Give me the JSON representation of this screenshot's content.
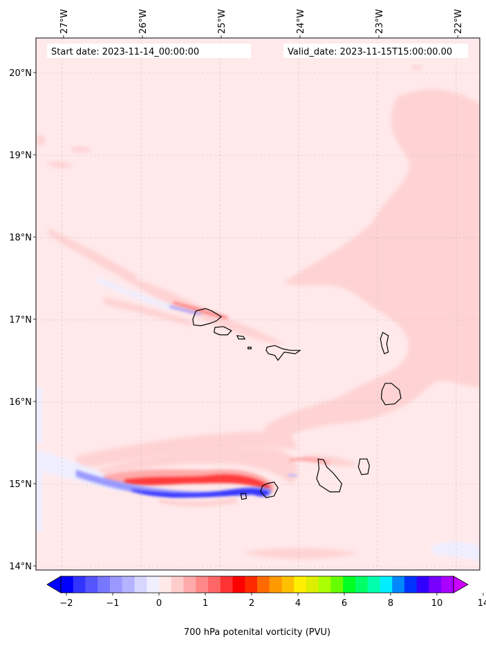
{
  "chart_data": {
    "type": "heatmap",
    "title_left": "Start date: 2023-11-14_00:00:00",
    "title_right": "Valid_date: 2023-11-15T15:00:00.00",
    "x_ticks": [
      {
        "value": -27,
        "label": "27°W"
      },
      {
        "value": -26,
        "label": "26°W"
      },
      {
        "value": -25,
        "label": "25°W"
      },
      {
        "value": -24,
        "label": "24°W"
      },
      {
        "value": -23,
        "label": "23°W"
      },
      {
        "value": -22,
        "label": "22°W"
      }
    ],
    "y_ticks": [
      {
        "value": 20,
        "label": "20°N"
      },
      {
        "value": 19,
        "label": "19°N"
      },
      {
        "value": 18,
        "label": "18°N"
      },
      {
        "value": 17,
        "label": "17°N"
      },
      {
        "value": 16,
        "label": "16°N"
      },
      {
        "value": 15,
        "label": "15°N"
      },
      {
        "value": 14,
        "label": "14°N"
      }
    ],
    "xlim": [
      -27.35,
      -21.72
    ],
    "ylim": [
      13.95,
      20.42
    ],
    "grid": true,
    "colorbar": {
      "label": "700 hPa potenital vorticity (PVU)",
      "extend": "both",
      "ticks": [
        "−2",
        "−1",
        "0",
        "1",
        "2",
        "4",
        "6",
        "8",
        "10",
        "14"
      ],
      "colors": [
        "#0000ff",
        "#3333ff",
        "#5555ff",
        "#7777ff",
        "#9999ff",
        "#b3b3ff",
        "#d6d6ff",
        "#efefff",
        "#ffe8e8",
        "#ffcccc",
        "#ffaaaa",
        "#ff8888",
        "#ff6666",
        "#ff3333",
        "#ff0000",
        "#ff2a00",
        "#ff6a00",
        "#ff9900",
        "#ffc000",
        "#ffee00",
        "#ddee00",
        "#aaff00",
        "#66ff00",
        "#00ff22",
        "#00ff66",
        "#00ffaa",
        "#00eeff",
        "#0088ff",
        "#0033ff",
        "#3300ff",
        "#7700ff",
        "#aa00ff"
      ],
      "under_color": "#0000ff",
      "over_color": "#cc00ff"
    },
    "field_colors": {
      "background": "#ffe9ea",
      "weak_positive": "#ffd3d4",
      "weak_negative": "#eeeeff",
      "positive": "#ff4d4d",
      "strong_positive": "#ff1a1a",
      "negative": "#6f6fff",
      "strong_negative": "#2020ff"
    },
    "islands": [
      {
        "name": "santo-antao",
        "coords": [
          [
            -25.32,
            17.1
          ],
          [
            -25.2,
            17.13
          ],
          [
            -25.12,
            17.1
          ],
          [
            -25.05,
            17.06
          ],
          [
            -25.0,
            17.03
          ],
          [
            -25.06,
            16.98
          ],
          [
            -25.14,
            16.95
          ],
          [
            -25.26,
            16.92
          ],
          [
            -25.35,
            16.93
          ],
          [
            -25.36,
            17.0
          ]
        ]
      },
      {
        "name": "sao-vicente",
        "coords": [
          [
            -25.08,
            16.9
          ],
          [
            -24.97,
            16.91
          ],
          [
            -24.87,
            16.86
          ],
          [
            -24.92,
            16.81
          ],
          [
            -25.02,
            16.81
          ],
          [
            -25.09,
            16.84
          ]
        ]
      },
      {
        "name": "santa-luzia",
        "coords": [
          [
            -24.8,
            16.8
          ],
          [
            -24.72,
            16.79
          ],
          [
            -24.7,
            16.76
          ],
          [
            -24.78,
            16.76
          ]
        ]
      },
      {
        "name": "branco",
        "coords": [
          [
            -24.66,
            16.66
          ],
          [
            -24.62,
            16.66
          ],
          [
            -24.62,
            16.64
          ],
          [
            -24.66,
            16.64
          ]
        ]
      },
      {
        "name": "sao-nicolau",
        "coords": [
          [
            -24.42,
            16.66
          ],
          [
            -24.32,
            16.68
          ],
          [
            -24.22,
            16.64
          ],
          [
            -24.12,
            16.62
          ],
          [
            -24.0,
            16.62
          ],
          [
            -24.06,
            16.58
          ],
          [
            -24.2,
            16.6
          ],
          [
            -24.28,
            16.5
          ],
          [
            -24.32,
            16.56
          ],
          [
            -24.4,
            16.58
          ],
          [
            -24.43,
            16.62
          ]
        ]
      },
      {
        "name": "sal",
        "coords": [
          [
            -22.95,
            16.84
          ],
          [
            -22.88,
            16.8
          ],
          [
            -22.9,
            16.7
          ],
          [
            -22.88,
            16.6
          ],
          [
            -22.93,
            16.58
          ],
          [
            -22.96,
            16.66
          ],
          [
            -22.98,
            16.76
          ]
        ]
      },
      {
        "name": "boa-vista",
        "coords": [
          [
            -22.92,
            16.22
          ],
          [
            -22.84,
            16.22
          ],
          [
            -22.74,
            16.14
          ],
          [
            -22.72,
            16.04
          ],
          [
            -22.8,
            15.97
          ],
          [
            -22.92,
            15.96
          ],
          [
            -22.97,
            16.04
          ],
          [
            -22.96,
            16.14
          ]
        ]
      },
      {
        "name": "maio",
        "coords": [
          [
            -23.24,
            15.3
          ],
          [
            -23.15,
            15.3
          ],
          [
            -23.12,
            15.22
          ],
          [
            -23.14,
            15.12
          ],
          [
            -23.22,
            15.11
          ],
          [
            -23.26,
            15.2
          ]
        ]
      },
      {
        "name": "santiago",
        "coords": [
          [
            -23.77,
            15.3
          ],
          [
            -23.7,
            15.29
          ],
          [
            -23.66,
            15.2
          ],
          [
            -23.58,
            15.13
          ],
          [
            -23.47,
            15.0
          ],
          [
            -23.5,
            14.9
          ],
          [
            -23.62,
            14.9
          ],
          [
            -23.75,
            14.98
          ],
          [
            -23.79,
            15.06
          ],
          [
            -23.76,
            15.18
          ]
        ]
      },
      {
        "name": "fogo",
        "coords": [
          [
            -24.42,
            15.0
          ],
          [
            -24.33,
            15.02
          ],
          [
            -24.28,
            14.95
          ],
          [
            -24.33,
            14.85
          ],
          [
            -24.43,
            14.83
          ],
          [
            -24.5,
            14.9
          ],
          [
            -24.48,
            14.97
          ]
        ]
      },
      {
        "name": "brava",
        "coords": [
          [
            -24.75,
            14.88
          ],
          [
            -24.69,
            14.88
          ],
          [
            -24.68,
            14.82
          ],
          [
            -24.74,
            14.81
          ]
        ]
      }
    ]
  }
}
